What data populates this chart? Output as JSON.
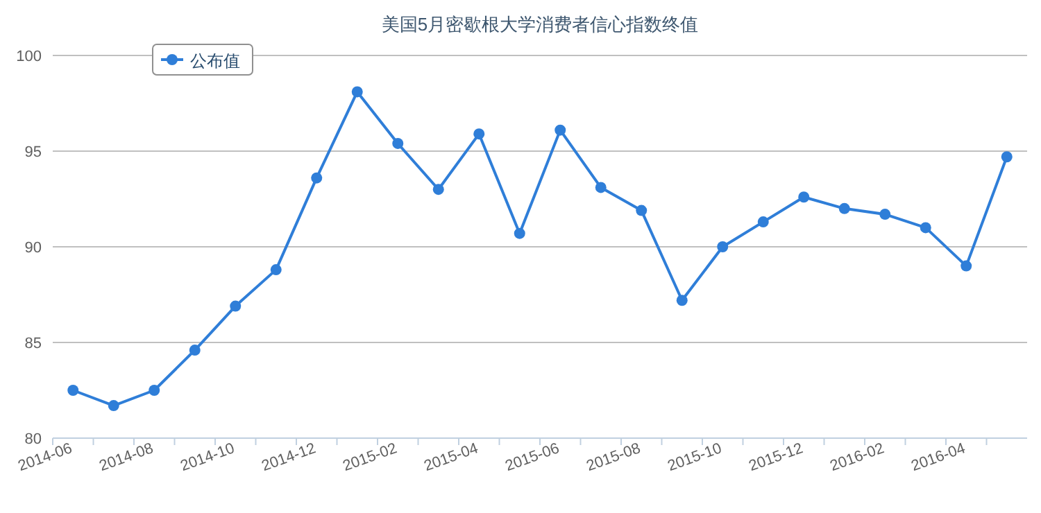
{
  "chart_data": {
    "type": "line",
    "title": "美国5月密歇根大学消费者信心指数终值",
    "categories": [
      "2014-06",
      null,
      "2014-08",
      null,
      "2014-10",
      null,
      "2014-12",
      null,
      "2015-02",
      null,
      "2015-04",
      null,
      "2015-06",
      null,
      "2015-08",
      null,
      "2015-10",
      null,
      "2015-12",
      null,
      "2016-02",
      null,
      "2016-04",
      null
    ],
    "series": [
      {
        "name": "公布值",
        "color": "#2f7ed8",
        "values": [
          82.5,
          81.7,
          82.5,
          84.6,
          86.9,
          88.8,
          93.6,
          98.1,
          95.4,
          93.0,
          95.9,
          90.7,
          96.1,
          93.1,
          91.9,
          87.2,
          90.0,
          91.3,
          92.6,
          92.0,
          91.7,
          91.0,
          89.0,
          94.7
        ]
      }
    ],
    "ylim": [
      80,
      100
    ],
    "yticks": [
      80,
      85,
      90,
      95,
      100
    ],
    "grid": "y",
    "legend": "top left",
    "marker": "circle",
    "line_style": "solid"
  }
}
